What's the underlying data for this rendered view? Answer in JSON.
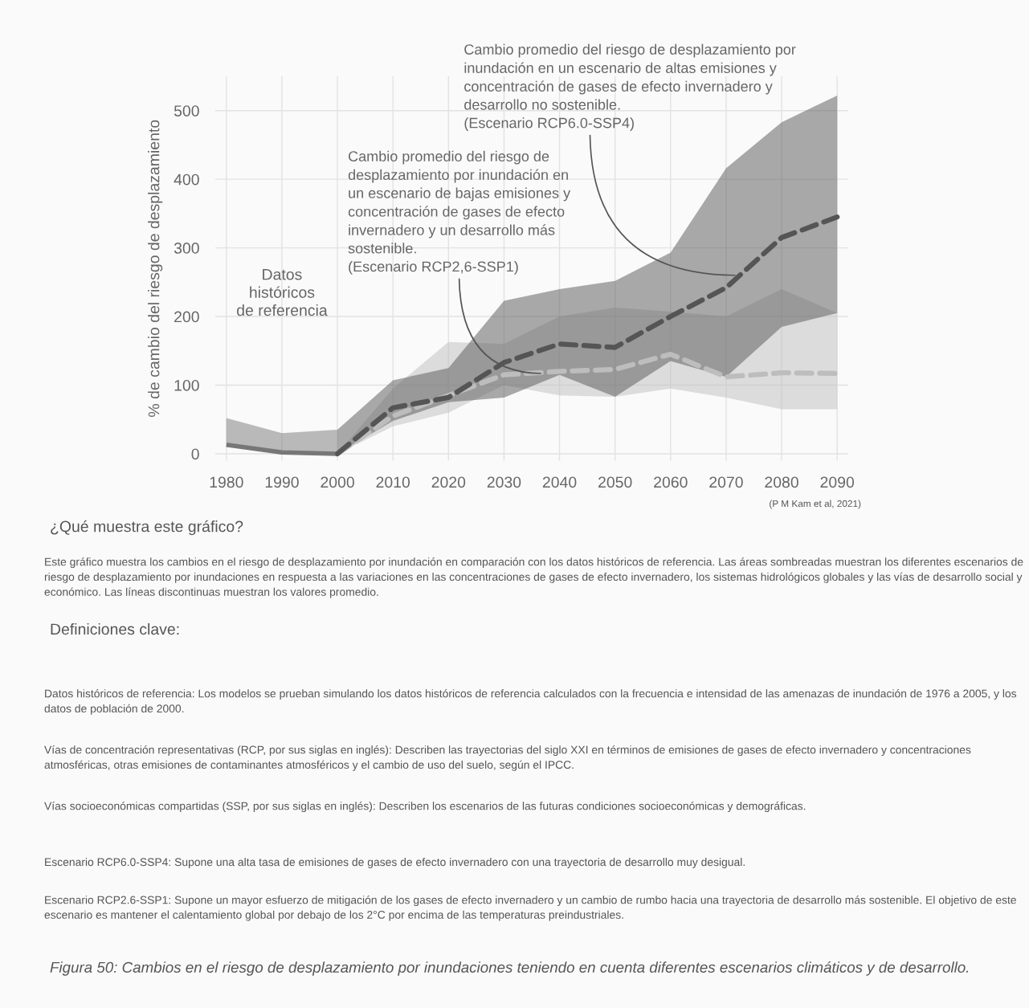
{
  "chart_data": {
    "type": "line",
    "ylabel": "% de cambio del riesgo de desplazamiento",
    "xlim": [
      1978,
      2092
    ],
    "ylim": [
      -10,
      550
    ],
    "xticks": [
      1980,
      1990,
      2000,
      2010,
      2020,
      2030,
      2040,
      2050,
      2060,
      2070,
      2080,
      2090
    ],
    "yticks": [
      0,
      100,
      200,
      300,
      400,
      500
    ],
    "grid": true,
    "series": [
      {
        "color": "#777777",
        "line_style": "solid",
        "x": [
          1980,
          1990,
          2000
        ],
        "values": [
          13,
          2,
          0
        ],
        "lower": [
          13,
          2,
          0
        ],
        "upper": [
          52,
          30,
          35
        ]
      },
      {
        "color": "#bdbdbd",
        "line_style": "dashed",
        "x": [
          2000,
          2010,
          2020,
          2030,
          2040,
          2050,
          2060,
          2070,
          2080,
          2090
        ],
        "values": [
          0,
          55,
          85,
          115,
          120,
          123,
          145,
          112,
          118,
          117
        ],
        "lower": [
          0,
          40,
          60,
          100,
          85,
          83,
          95,
          82,
          65,
          65
        ],
        "upper": [
          0,
          95,
          163,
          160,
          200,
          213,
          207,
          200,
          240,
          205
        ]
      },
      {
        "color": "#555555",
        "line_style": "dashed",
        "x": [
          2000,
          2010,
          2020,
          2030,
          2040,
          2050,
          2060,
          2070,
          2080,
          2090
        ],
        "values": [
          0,
          67,
          82,
          133,
          160,
          155,
          200,
          242,
          315,
          345
        ],
        "lower": [
          0,
          48,
          75,
          82,
          115,
          83,
          135,
          112,
          185,
          205
        ],
        "upper": [
          35,
          107,
          125,
          223,
          240,
          252,
          293,
          416,
          483,
          522
        ]
      }
    ],
    "annotations": [
      "Datos\nhistóricos\nde referencia",
      {
        "text": "Cambio promedio del riesgo de desplazamiento por\ninundación en un escenario de altas emisiones y\nconcentración de gases de efecto invernadero y\ndesarrollo no sostenible.\n(Escenario RCP6.0-SSP4)",
        "x": 2072,
        "y": 260
      },
      {
        "text": "Cambio promedio del riesgo de\ndesplazamiento por inundación en\nun escenario de bajas emisiones y\nconcentración de gases de efecto\ninvernadero y un desarrollo más\nsostenible.\n(Escenario RCP2,6-SSP1)",
        "x": 2037,
        "y": 117
      },
      "(P M Kam et al, 2021)",
      "¿Qué muestra este gráfico?",
      "Este gráfico muestra los cambios en el riesgo de desplazamiento por inundación en comparación con los datos históricos de referencia. Las áreas sombreadas muestran los diferentes escenarios de riesgo de desplazamiento por inundaciones en respuesta a las variaciones en las concentraciones de gases de efecto invernadero, los sistemas hidrológicos globales y las vías de desarrollo social y económico. Las líneas discontinuas muestran los valores promedio.",
      "Definiciones clave:",
      "Datos históricos de referencia: Los modelos se prueban simulando los datos históricos de referencia calculados con la frecuencia e intensidad de las amenazas de inundación de 1976 a 2005, y los datos de población de 2000.",
      "Vías de concentración representativas (RCP, por sus siglas en inglés): Describen las trayectorias del siglo XXI en términos de emisiones de gases de efecto invernadero y concentraciones atmosféricas, otras emisiones de contaminantes atmosféricos y el cambio de uso del suelo, según el IPCC.",
      "Vías socioeconómicas compartidas (SSP, por sus siglas en inglés): Describen los escenarios de las futuras condiciones socioeconómicas y demográficas.",
      "Escenario RCP6.0-SSP4: Supone una alta tasa de emisiones de gases de efecto invernadero con una trayectoria de desarrollo muy desigual.",
      "Escenario RCP2.6-SSP1: Supone un mayor esfuerzo de mitigación de los gases de efecto invernadero y un cambio de rumbo hacia una trayectoria de desarrollo más sostenible. El objetivo de este escenario es mantener el calentamiento global por debajo de los 2°C por encima de las temperaturas preindustriales.",
      "Figura 50: Cambios en el riesgo de desplazamiento por inundaciones teniendo en cuenta diferentes escenarios climáticos y de desarrollo."
    ]
  }
}
